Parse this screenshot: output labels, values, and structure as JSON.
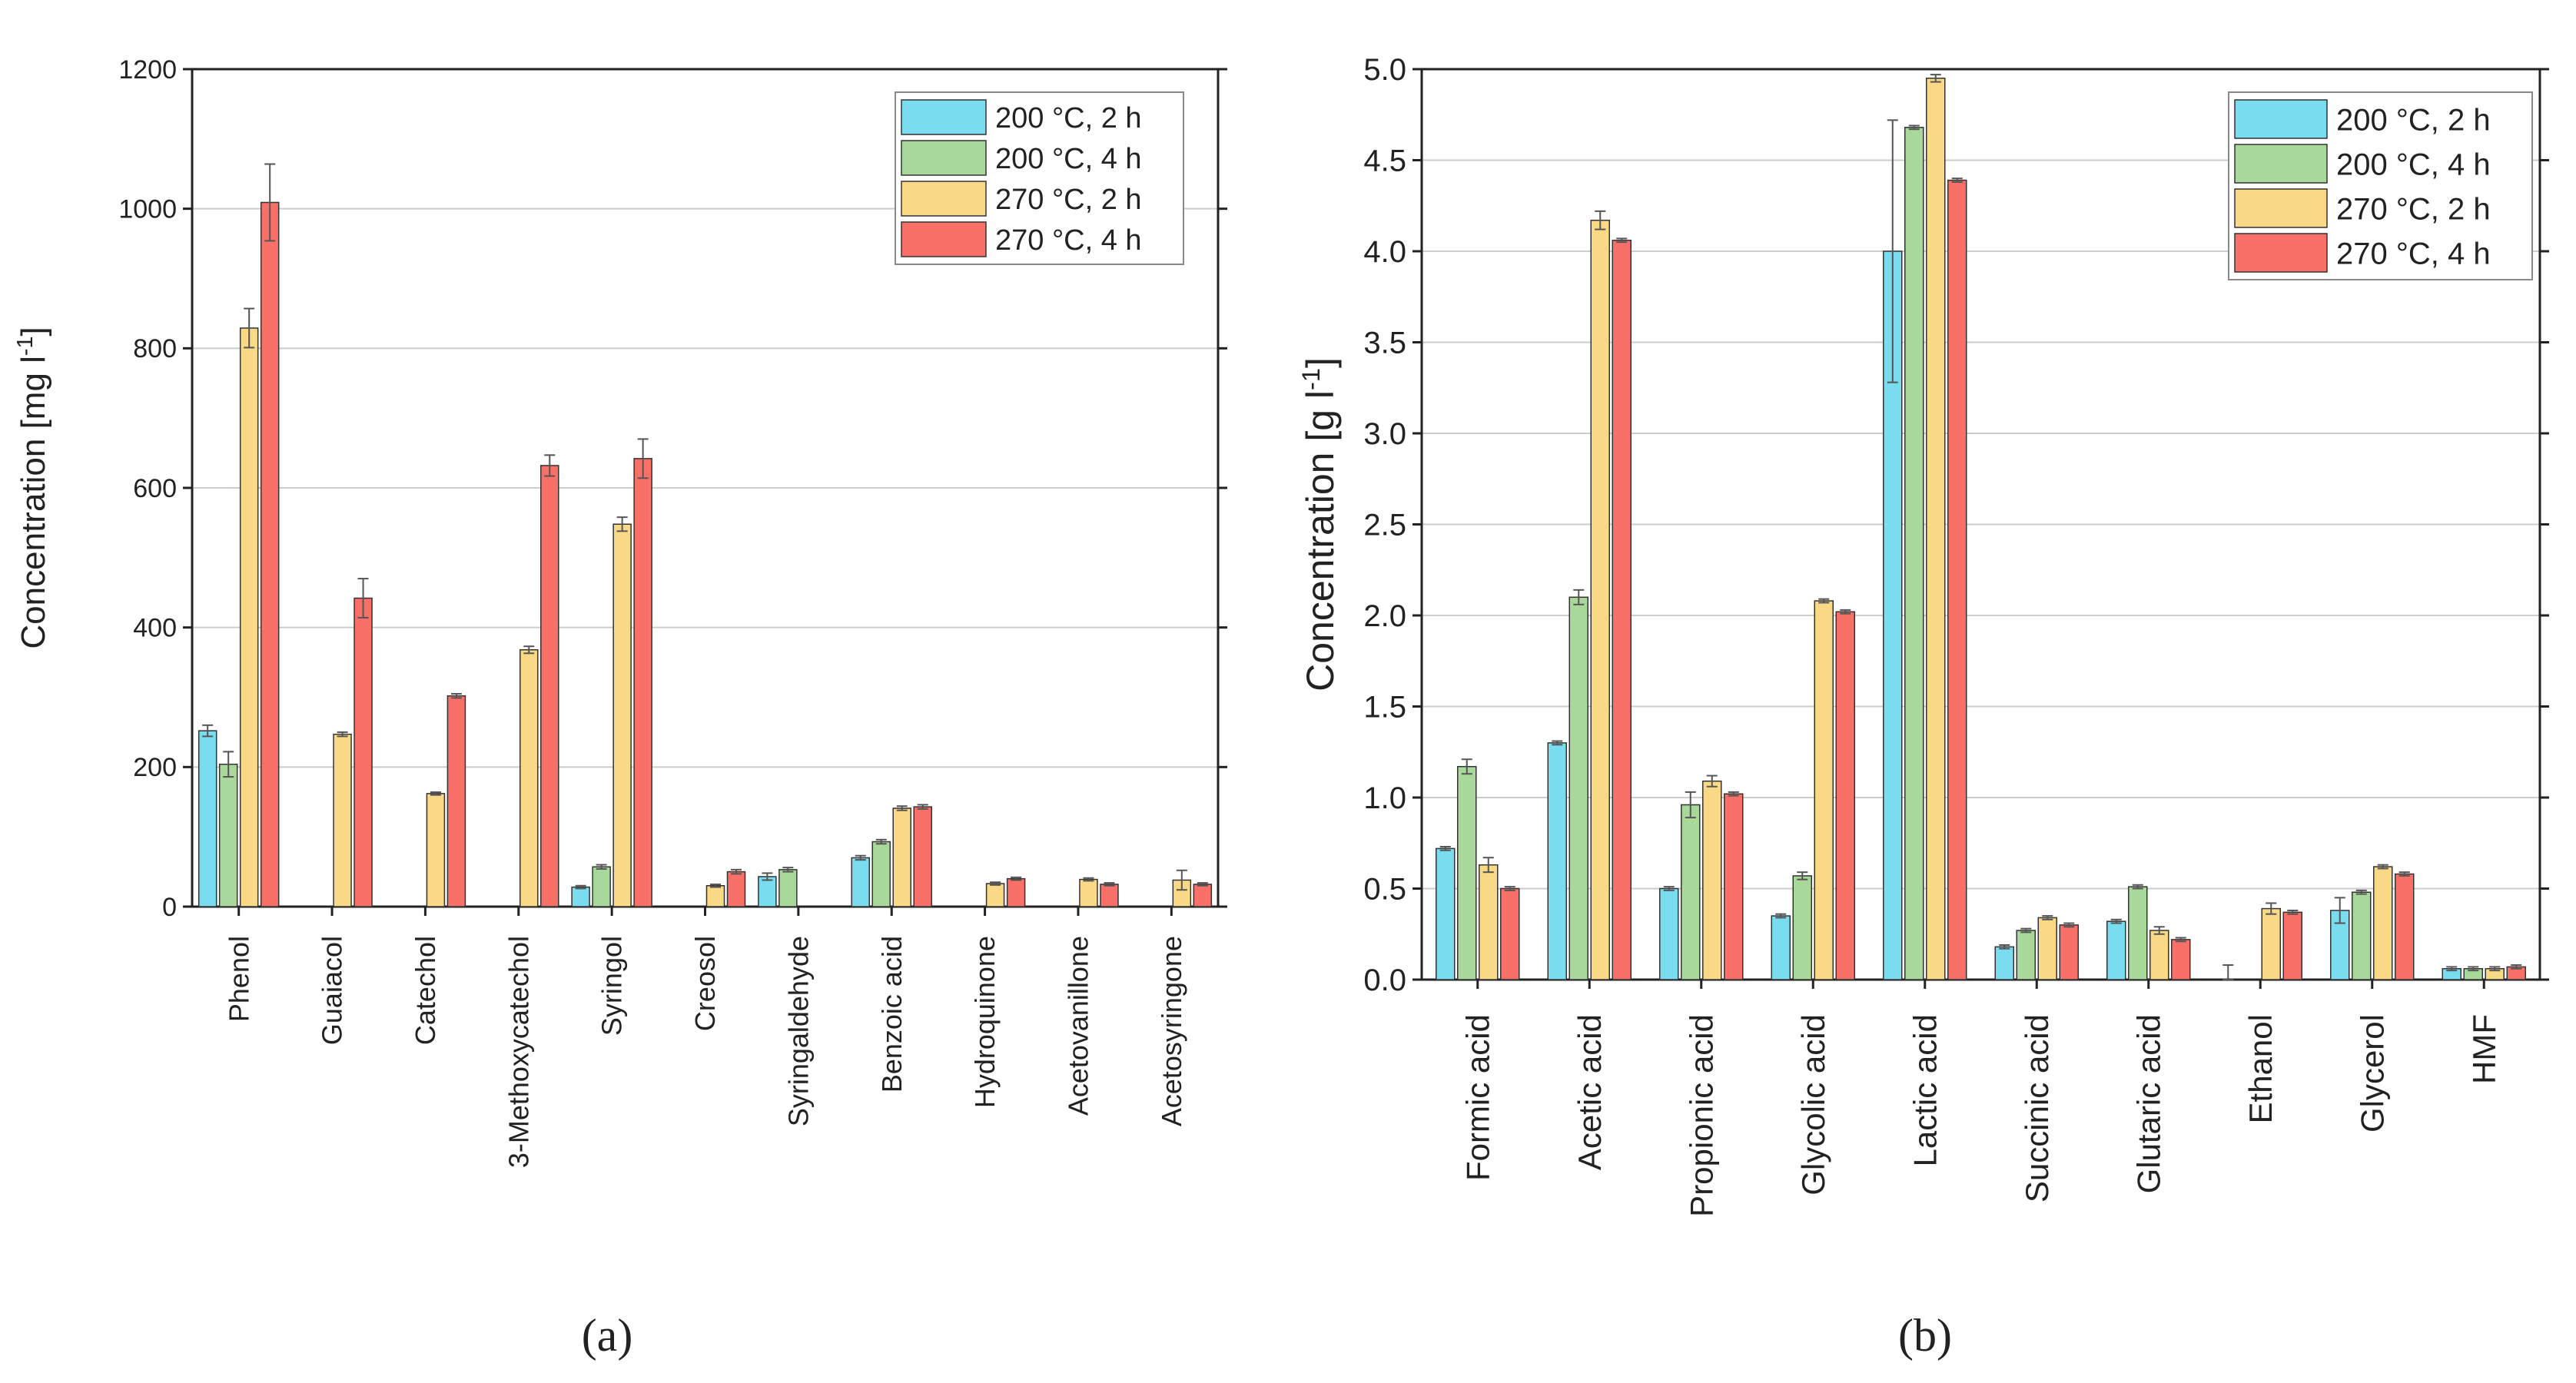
{
  "colors": {
    "s200_2": "#79dcef",
    "s200_4": "#a8d89a",
    "s270_2": "#f9d985",
    "s270_4": "#f97068",
    "grid": "#cccccc",
    "axis": "#222222"
  },
  "chart_data": [
    {
      "type": "bar",
      "panel_label": "(a)",
      "ylabel": "Concentration [mg l",
      "ylabel_sup": "-1",
      "ylabel_end": "]",
      "ylim": [
        0,
        1200
      ],
      "yticks": [
        0,
        200,
        400,
        600,
        800,
        1000,
        1200
      ],
      "ytick_labels": [
        "0",
        "200",
        "400",
        "600",
        "800",
        "1000",
        "1200"
      ],
      "grid": true,
      "legend_position": "top-right",
      "categories": [
        "Phenol",
        "Guaiacol",
        "Catechol",
        "3-Methoxycatechol",
        "Syringol",
        "Creosol",
        "Syringaldehyde",
        "Benzoic acid",
        "Hydroquinone",
        "Acetovanillone",
        "Acetosyringone"
      ],
      "series": [
        {
          "name": "200 °C, 2 h",
          "values": [
            252,
            null,
            null,
            null,
            28,
            null,
            43,
            70,
            null,
            null,
            null
          ],
          "errors": [
            8,
            null,
            null,
            null,
            2,
            null,
            5,
            3,
            null,
            null,
            null
          ]
        },
        {
          "name": "200 °C, 4 h",
          "values": [
            204,
            null,
            null,
            null,
            57,
            null,
            53,
            93,
            null,
            null,
            null
          ],
          "errors": [
            18,
            null,
            null,
            null,
            3,
            null,
            3,
            3,
            null,
            null,
            null
          ]
        },
        {
          "name": "270 °C, 2 h",
          "values": [
            829,
            247,
            162,
            368,
            548,
            30,
            null,
            141,
            33,
            39,
            38
          ],
          "errors": [
            28,
            3,
            2,
            5,
            10,
            2,
            null,
            3,
            2,
            2,
            14
          ]
        },
        {
          "name": "270 °C, 4 h",
          "values": [
            1009,
            442,
            302,
            632,
            642,
            50,
            null,
            143,
            40,
            32,
            32
          ],
          "errors": [
            55,
            28,
            3,
            15,
            28,
            3,
            null,
            3,
            2,
            2,
            2
          ]
        }
      ]
    },
    {
      "type": "bar",
      "panel_label": "(b)",
      "ylabel": "Concentration [g l",
      "ylabel_sup": "-1",
      "ylabel_end": "]",
      "ylim": [
        0,
        5
      ],
      "yticks": [
        0,
        0.5,
        1,
        1.5,
        2,
        2.5,
        3,
        3.5,
        4,
        4.5,
        5
      ],
      "ytick_labels": [
        "0.0",
        "0.5",
        "1.0",
        "1.5",
        "2.0",
        "2.5",
        "3.0",
        "3.5",
        "4.0",
        "4.5",
        "5.0"
      ],
      "grid": true,
      "legend_position": "top-right",
      "categories": [
        "Formic acid",
        "Acetic acid",
        "Propionic acid",
        "Glycolic acid",
        "Lactic acid",
        "Succinic acid",
        "Glutaric acid",
        "Ethanol",
        "Glycerol",
        "HMF"
      ],
      "series": [
        {
          "name": "200 °C, 2 h",
          "values": [
            0.72,
            1.3,
            0.5,
            0.35,
            4.0,
            0.18,
            0.32,
            0.0,
            0.38,
            0.06
          ],
          "errors": [
            0.01,
            0.01,
            0.01,
            0.01,
            0.72,
            0.01,
            0.01,
            0.08,
            0.07,
            0.01
          ]
        },
        {
          "name": "200 °C, 4 h",
          "values": [
            1.17,
            2.1,
            0.96,
            0.57,
            4.68,
            0.27,
            0.51,
            null,
            0.48,
            0.06
          ],
          "errors": [
            0.04,
            0.04,
            0.07,
            0.02,
            0.01,
            0.01,
            0.01,
            null,
            0.01,
            0.01
          ]
        },
        {
          "name": "270 °C, 2 h",
          "values": [
            0.63,
            4.17,
            1.09,
            2.08,
            4.95,
            0.34,
            0.27,
            0.39,
            0.62,
            0.06
          ],
          "errors": [
            0.04,
            0.05,
            0.03,
            0.01,
            0.02,
            0.01,
            0.02,
            0.03,
            0.01,
            0.01
          ]
        },
        {
          "name": "270 °C, 4 h",
          "values": [
            0.5,
            4.06,
            1.02,
            2.02,
            4.39,
            0.3,
            0.22,
            0.37,
            0.58,
            0.07
          ],
          "errors": [
            0.01,
            0.01,
            0.01,
            0.01,
            0.01,
            0.01,
            0.01,
            0.01,
            0.01,
            0.01
          ]
        }
      ]
    }
  ]
}
